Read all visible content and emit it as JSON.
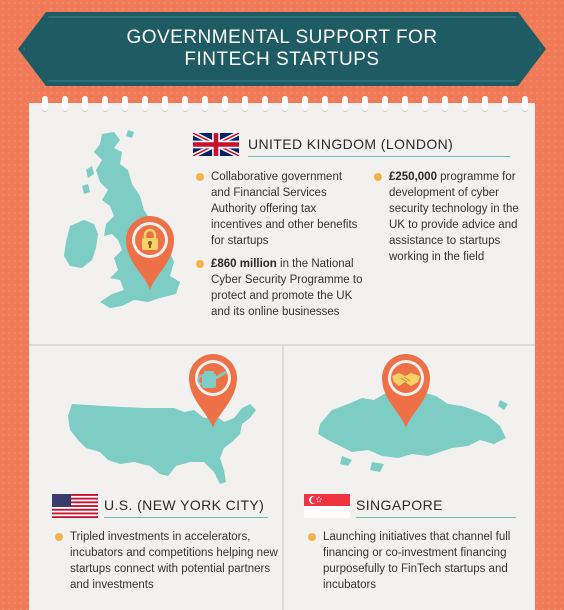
{
  "title": {
    "line1": "GOVERNMENTAL SUPPORT FOR",
    "line2": "FINTECH STARTUPS"
  },
  "colors": {
    "background": "#f07a58",
    "banner": "#1f5b63",
    "paper": "#f2f1ef",
    "map": "#7ecdc4",
    "pin": "#ee7047",
    "bullet": "#f1b347"
  },
  "uk": {
    "country": "UNITED KINGDOM (LONDON)",
    "pin_icon": "lock-icon",
    "bullets": [
      {
        "bold": "",
        "text": "Collaborative government and Financial Services Authority offering tax incentives and other benefits for startups"
      },
      {
        "bold": "£860 million",
        "text": " in the National Cyber Security Programme to protect and promote the UK and its online businesses"
      },
      {
        "bold": "£250,000",
        "text": " programme for development of cyber security technology in the UK to provide advice and assistance to startups working in the field"
      }
    ]
  },
  "us": {
    "country": "U.S. (NEW YORK CITY)",
    "pin_icon": "watering-can-icon",
    "bullets": [
      {
        "text": "Tripled investments in accelerators, incubators and competitions helping new startups connect with potential partners and investments"
      }
    ]
  },
  "sg": {
    "country": "SINGAPORE",
    "pin_icon": "handshake-icon",
    "bullets": [
      {
        "text": "Launching initiatives that channel full financing or co-investment financing purposefully to FinTech startups and incubators"
      }
    ]
  }
}
